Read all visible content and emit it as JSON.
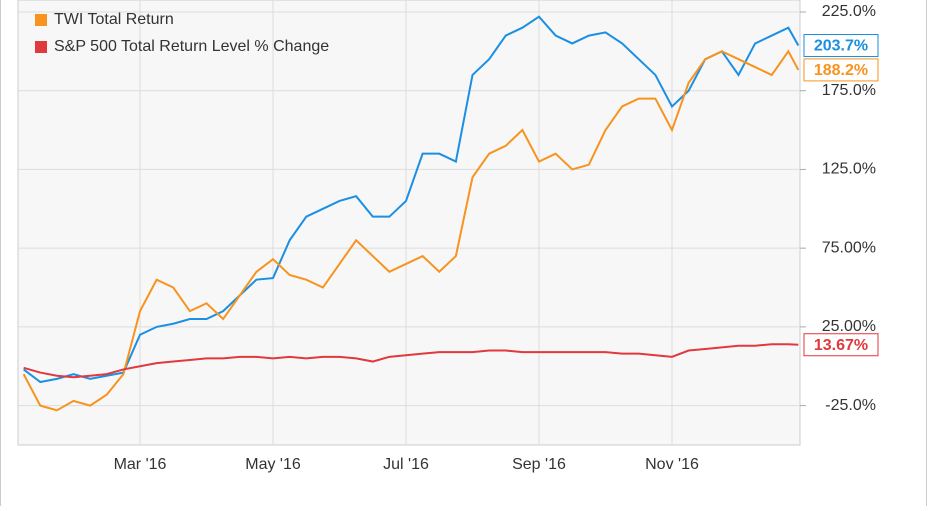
{
  "chart_data": {
    "type": "line",
    "x": [
      1.25,
      1.5,
      1.75,
      2,
      2.25,
      2.5,
      2.75,
      3,
      3.25,
      3.5,
      3.75,
      4,
      4.25,
      4.5,
      4.75,
      5,
      5.25,
      5.5,
      5.75,
      6,
      6.25,
      6.5,
      6.75,
      7,
      7.25,
      7.5,
      7.75,
      8,
      8.25,
      8.5,
      8.75,
      9,
      9.25,
      9.5,
      9.75,
      10,
      10.25,
      10.5,
      10.75,
      11,
      11.25,
      11.5,
      11.75,
      12,
      12.25,
      12.5,
      12.75,
      12.9
    ],
    "series": [
      {
        "color": "#1a8fe3",
        "values": [
          -2,
          -10,
          -8,
          -5,
          -8,
          -6,
          -4,
          20,
          25,
          27,
          30,
          30,
          35,
          45,
          55,
          56,
          80,
          95,
          100,
          105,
          108,
          95,
          95,
          105,
          135,
          135,
          130,
          185,
          195,
          210,
          215,
          222,
          210,
          205,
          210,
          212,
          205,
          195,
          185,
          165,
          175,
          195,
          200,
          185,
          205,
          210,
          215,
          203.7
        ],
        "end_label": "203.7%"
      },
      {
        "name": "TWI Total Return",
        "color": "#f7931e",
        "values": [
          -5,
          -25,
          -28,
          -22,
          -25,
          -18,
          -5,
          35,
          55,
          50,
          35,
          40,
          30,
          45,
          60,
          68,
          58,
          55,
          50,
          65,
          80,
          70,
          60,
          65,
          70,
          60,
          70,
          120,
          135,
          140,
          150,
          130,
          135,
          125,
          128,
          150,
          165,
          170,
          170,
          150,
          180,
          195,
          200,
          195,
          190,
          185,
          200,
          188.2
        ],
        "end_label": "188.2%"
      },
      {
        "name": "S&P 500 Total Return Level % Change",
        "color": "#e0393e",
        "values": [
          -1,
          -4,
          -6,
          -7,
          -6,
          -5,
          -2,
          0,
          2,
          3,
          4,
          5,
          5,
          6,
          6,
          5,
          6,
          5,
          6,
          6,
          5,
          3,
          6,
          7,
          8,
          9,
          9,
          9,
          10,
          10,
          9,
          9,
          9,
          9,
          9,
          9,
          8,
          8,
          7,
          6,
          10,
          11,
          12,
          13,
          13,
          14,
          14,
          13.67
        ],
        "end_label": "13.67%"
      }
    ],
    "xlim": [
      1.165,
      12.925
    ],
    "xticks": [
      {
        "value": 3,
        "label": "Mar '16"
      },
      {
        "value": 5,
        "label": "May '16"
      },
      {
        "value": 7,
        "label": "Jul '16"
      },
      {
        "value": 9,
        "label": "Sep '16"
      },
      {
        "value": 11,
        "label": "Nov '16"
      }
    ],
    "ylim": [
      -50,
      232.6
    ],
    "yticks": [
      {
        "value": -25,
        "label": "-25.0%"
      },
      {
        "value": 25,
        "label": "25.00%"
      },
      {
        "value": 75,
        "label": "75.00%"
      },
      {
        "value": 125,
        "label": "125.0%"
      },
      {
        "value": 175,
        "label": "175.0%"
      },
      {
        "value": 225,
        "label": "225.0%"
      }
    ],
    "grid": true
  }
}
